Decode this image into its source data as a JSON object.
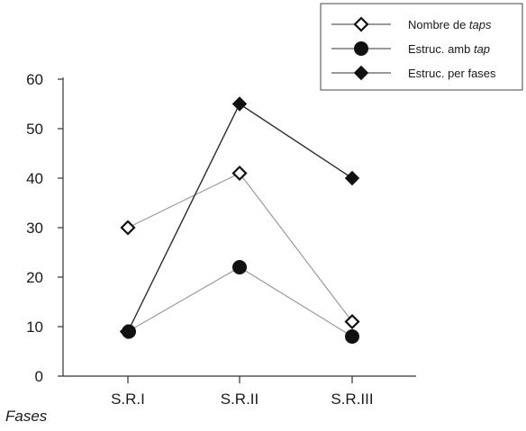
{
  "chart_data": {
    "type": "line",
    "categories": [
      "S.R.I",
      "S.R.II",
      "S.R.III"
    ],
    "xlabel": "Fases",
    "ylabel": "",
    "ylim": [
      0,
      60
    ],
    "yticks": [
      0,
      10,
      20,
      30,
      40,
      50,
      60
    ],
    "grid": false,
    "legend_position": "top-right",
    "series": [
      {
        "name": "Nombre de taps",
        "name_parts": [
          {
            "text": "Nombre de "
          },
          {
            "text": "taps",
            "italic": true
          }
        ],
        "marker": "diamond-open",
        "line_color": "#9a9a9a",
        "values": [
          30,
          41,
          11
        ]
      },
      {
        "name": "Estruc. amb tap",
        "name_parts": [
          {
            "text": "Estruc. amb "
          },
          {
            "text": "tap",
            "italic": true
          }
        ],
        "marker": "circle-filled",
        "line_color": "#9a9a9a",
        "values": [
          9,
          22,
          8
        ]
      },
      {
        "name": "Estruc. per fases",
        "name_parts": [
          {
            "text": "Estruc. per fases"
          }
        ],
        "marker": "diamond-filled",
        "line_color": "#2a2a2a",
        "values": [
          9,
          55,
          40
        ]
      }
    ]
  }
}
